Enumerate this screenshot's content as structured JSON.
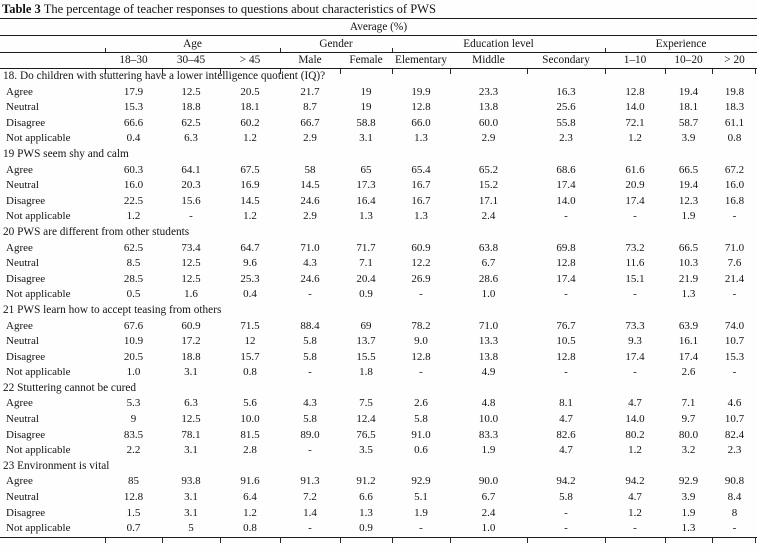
{
  "title": {
    "label": "Table 3",
    "text": "The percentage of teacher responses to questions about characteristics of PWS"
  },
  "table": {
    "average_header": "Average (%)",
    "groups": [
      {
        "label": "Age",
        "span": 3
      },
      {
        "label": "Gender",
        "span": 2
      },
      {
        "label": "Education level",
        "span": 3
      },
      {
        "label": "Experience",
        "span": 3
      }
    ],
    "columns": [
      "18–30",
      "30–45",
      "> 45",
      "Male",
      "Female",
      "Elementary",
      "Middle",
      "Secondary",
      "1–10",
      "10–20",
      "> 20"
    ],
    "questions": [
      {
        "question": "18. Do children with stuttering have a lower intelligence quotient (IQ)?",
        "rows": [
          {
            "label": "Agree",
            "values": [
              "17.9",
              "12.5",
              "20.5",
              "21.7",
              "19",
              "19.9",
              "23.3",
              "16.3",
              "12.8",
              "19.4",
              "19.8"
            ]
          },
          {
            "label": "Neutral",
            "values": [
              "15.3",
              "18.8",
              "18.1",
              "8.7",
              "19",
              "12.8",
              "13.8",
              "25.6",
              "14.0",
              "18.1",
              "18.3"
            ]
          },
          {
            "label": "Disagree",
            "values": [
              "66.6",
              "62.5",
              "60.2",
              "66.7",
              "58.8",
              "66.0",
              "60.0",
              "55.8",
              "72.1",
              "58.7",
              "61.1"
            ]
          },
          {
            "label": "Not applicable",
            "values": [
              "0.4",
              "6.3",
              "1.2",
              "2.9",
              "3.1",
              "1.3",
              "2.9",
              "2.3",
              "1.2",
              "3.9",
              "0.8"
            ]
          }
        ]
      },
      {
        "question": "19 PWS seem shy and calm",
        "rows": [
          {
            "label": "Agree",
            "values": [
              "60.3",
              "64.1",
              "67.5",
              "58",
              "65",
              "65.4",
              "65.2",
              "68.6",
              "61.6",
              "66.5",
              "67.2"
            ]
          },
          {
            "label": "Neutral",
            "values": [
              "16.0",
              "20.3",
              "16.9",
              "14.5",
              "17.3",
              "16.7",
              "15.2",
              "17.4",
              "20.9",
              "19.4",
              "16.0"
            ]
          },
          {
            "label": "Disagree",
            "values": [
              "22.5",
              "15.6",
              "14.5",
              "24.6",
              "16.4",
              "16.7",
              "17.1",
              "14.0",
              "17.4",
              "12.3",
              "16.8"
            ]
          },
          {
            "label": "Not applicable",
            "values": [
              "1.2",
              "-",
              "1.2",
              "2.9",
              "1.3",
              "1.3",
              "2.4",
              "-",
              "-",
              "1.9",
              "-"
            ]
          }
        ]
      },
      {
        "question": "20 PWS are different from other students",
        "rows": [
          {
            "label": "Agree",
            "values": [
              "62.5",
              "73.4",
              "64.7",
              "71.0",
              "71.7",
              "60.9",
              "63.8",
              "69.8",
              "73.2",
              "66.5",
              "71.0"
            ]
          },
          {
            "label": "Neutral",
            "values": [
              "8.5",
              "12.5",
              "9.6",
              "4.3",
              "7.1",
              "12.2",
              "6.7",
              "12.8",
              "11.6",
              "10.3",
              "7.6"
            ]
          },
          {
            "label": "Disagree",
            "values": [
              "28.5",
              "12.5",
              "25.3",
              "24.6",
              "20.4",
              "26.9",
              "28.6",
              "17.4",
              "15.1",
              "21.9",
              "21.4"
            ]
          },
          {
            "label": "Not applicable",
            "values": [
              "0.5",
              "1.6",
              "0.4",
              "-",
              "0.9",
              "-",
              "1.0",
              "-",
              "-",
              "1.3",
              "-"
            ]
          }
        ]
      },
      {
        "question": "21 PWS learn how to accept teasing from others",
        "rows": [
          {
            "label": "Agree",
            "values": [
              "67.6",
              "60.9",
              "71.5",
              "88.4",
              "69",
              "78.2",
              "71.0",
              "76.7",
              "73.3",
              "63.9",
              "74.0"
            ]
          },
          {
            "label": "Neutral",
            "values": [
              "10.9",
              "17.2",
              "12",
              "5.8",
              "13.7",
              "9.0",
              "13.3",
              "10.5",
              "9.3",
              "16.1",
              "10.7"
            ]
          },
          {
            "label": "Disagree",
            "values": [
              "20.5",
              "18.8",
              "15.7",
              "5.8",
              "15.5",
              "12.8",
              "13.8",
              "12.8",
              "17.4",
              "17.4",
              "15.3"
            ]
          },
          {
            "label": "Not applicable",
            "values": [
              "1.0",
              "3.1",
              "0.8",
              "-",
              "1.8",
              "-",
              "4.9",
              "-",
              "-",
              "2.6",
              "-"
            ]
          }
        ]
      },
      {
        "question": "22 Stuttering cannot be cured",
        "rows": [
          {
            "label": "Agree",
            "values": [
              "5.3",
              "6.3",
              "5.6",
              "4.3",
              "7.5",
              "2.6",
              "4.8",
              "8.1",
              "4.7",
              "7.1",
              "4.6"
            ]
          },
          {
            "label": "Neutral",
            "values": [
              "9",
              "12.5",
              "10.0",
              "5.8",
              "12.4",
              "5.8",
              "10.0",
              "4.7",
              "14.0",
              "9.7",
              "10.7"
            ]
          },
          {
            "label": "Disagree",
            "values": [
              "83.5",
              "78.1",
              "81.5",
              "89.0",
              "76.5",
              "91.0",
              "83.3",
              "82.6",
              "80.2",
              "80.0",
              "82.4"
            ]
          },
          {
            "label": "Not applicable",
            "values": [
              "2.2",
              "3.1",
              "2.8",
              "-",
              "3.5",
              "0.6",
              "1.9",
              "4.7",
              "1.2",
              "3.2",
              "2.3"
            ]
          }
        ]
      },
      {
        "question": "23 Environment is vital",
        "rows": [
          {
            "label": "Agree",
            "values": [
              "85",
              "93.8",
              "91.6",
              "91.3",
              "91.2",
              "92.9",
              "90.0",
              "94.2",
              "94.2",
              "92.9",
              "90.8"
            ]
          },
          {
            "label": "Neutral",
            "values": [
              "12.8",
              "3.1",
              "6.4",
              "7.2",
              "6.6",
              "5.1",
              "6.7",
              "5.8",
              "4.7",
              "3.9",
              "8.4"
            ]
          },
          {
            "label": "Disagree",
            "values": [
              "1.5",
              "3.1",
              "1.2",
              "1.4",
              "1.3",
              "1.9",
              "2.4",
              "-",
              "1.2",
              "1.9",
              "8"
            ]
          },
          {
            "label": "Not applicable",
            "values": [
              "0.7",
              "5",
              "0.8",
              "-",
              "0.9",
              "-",
              "1.0",
              "-",
              "-",
              "1.3",
              "-"
            ]
          }
        ]
      }
    ]
  }
}
